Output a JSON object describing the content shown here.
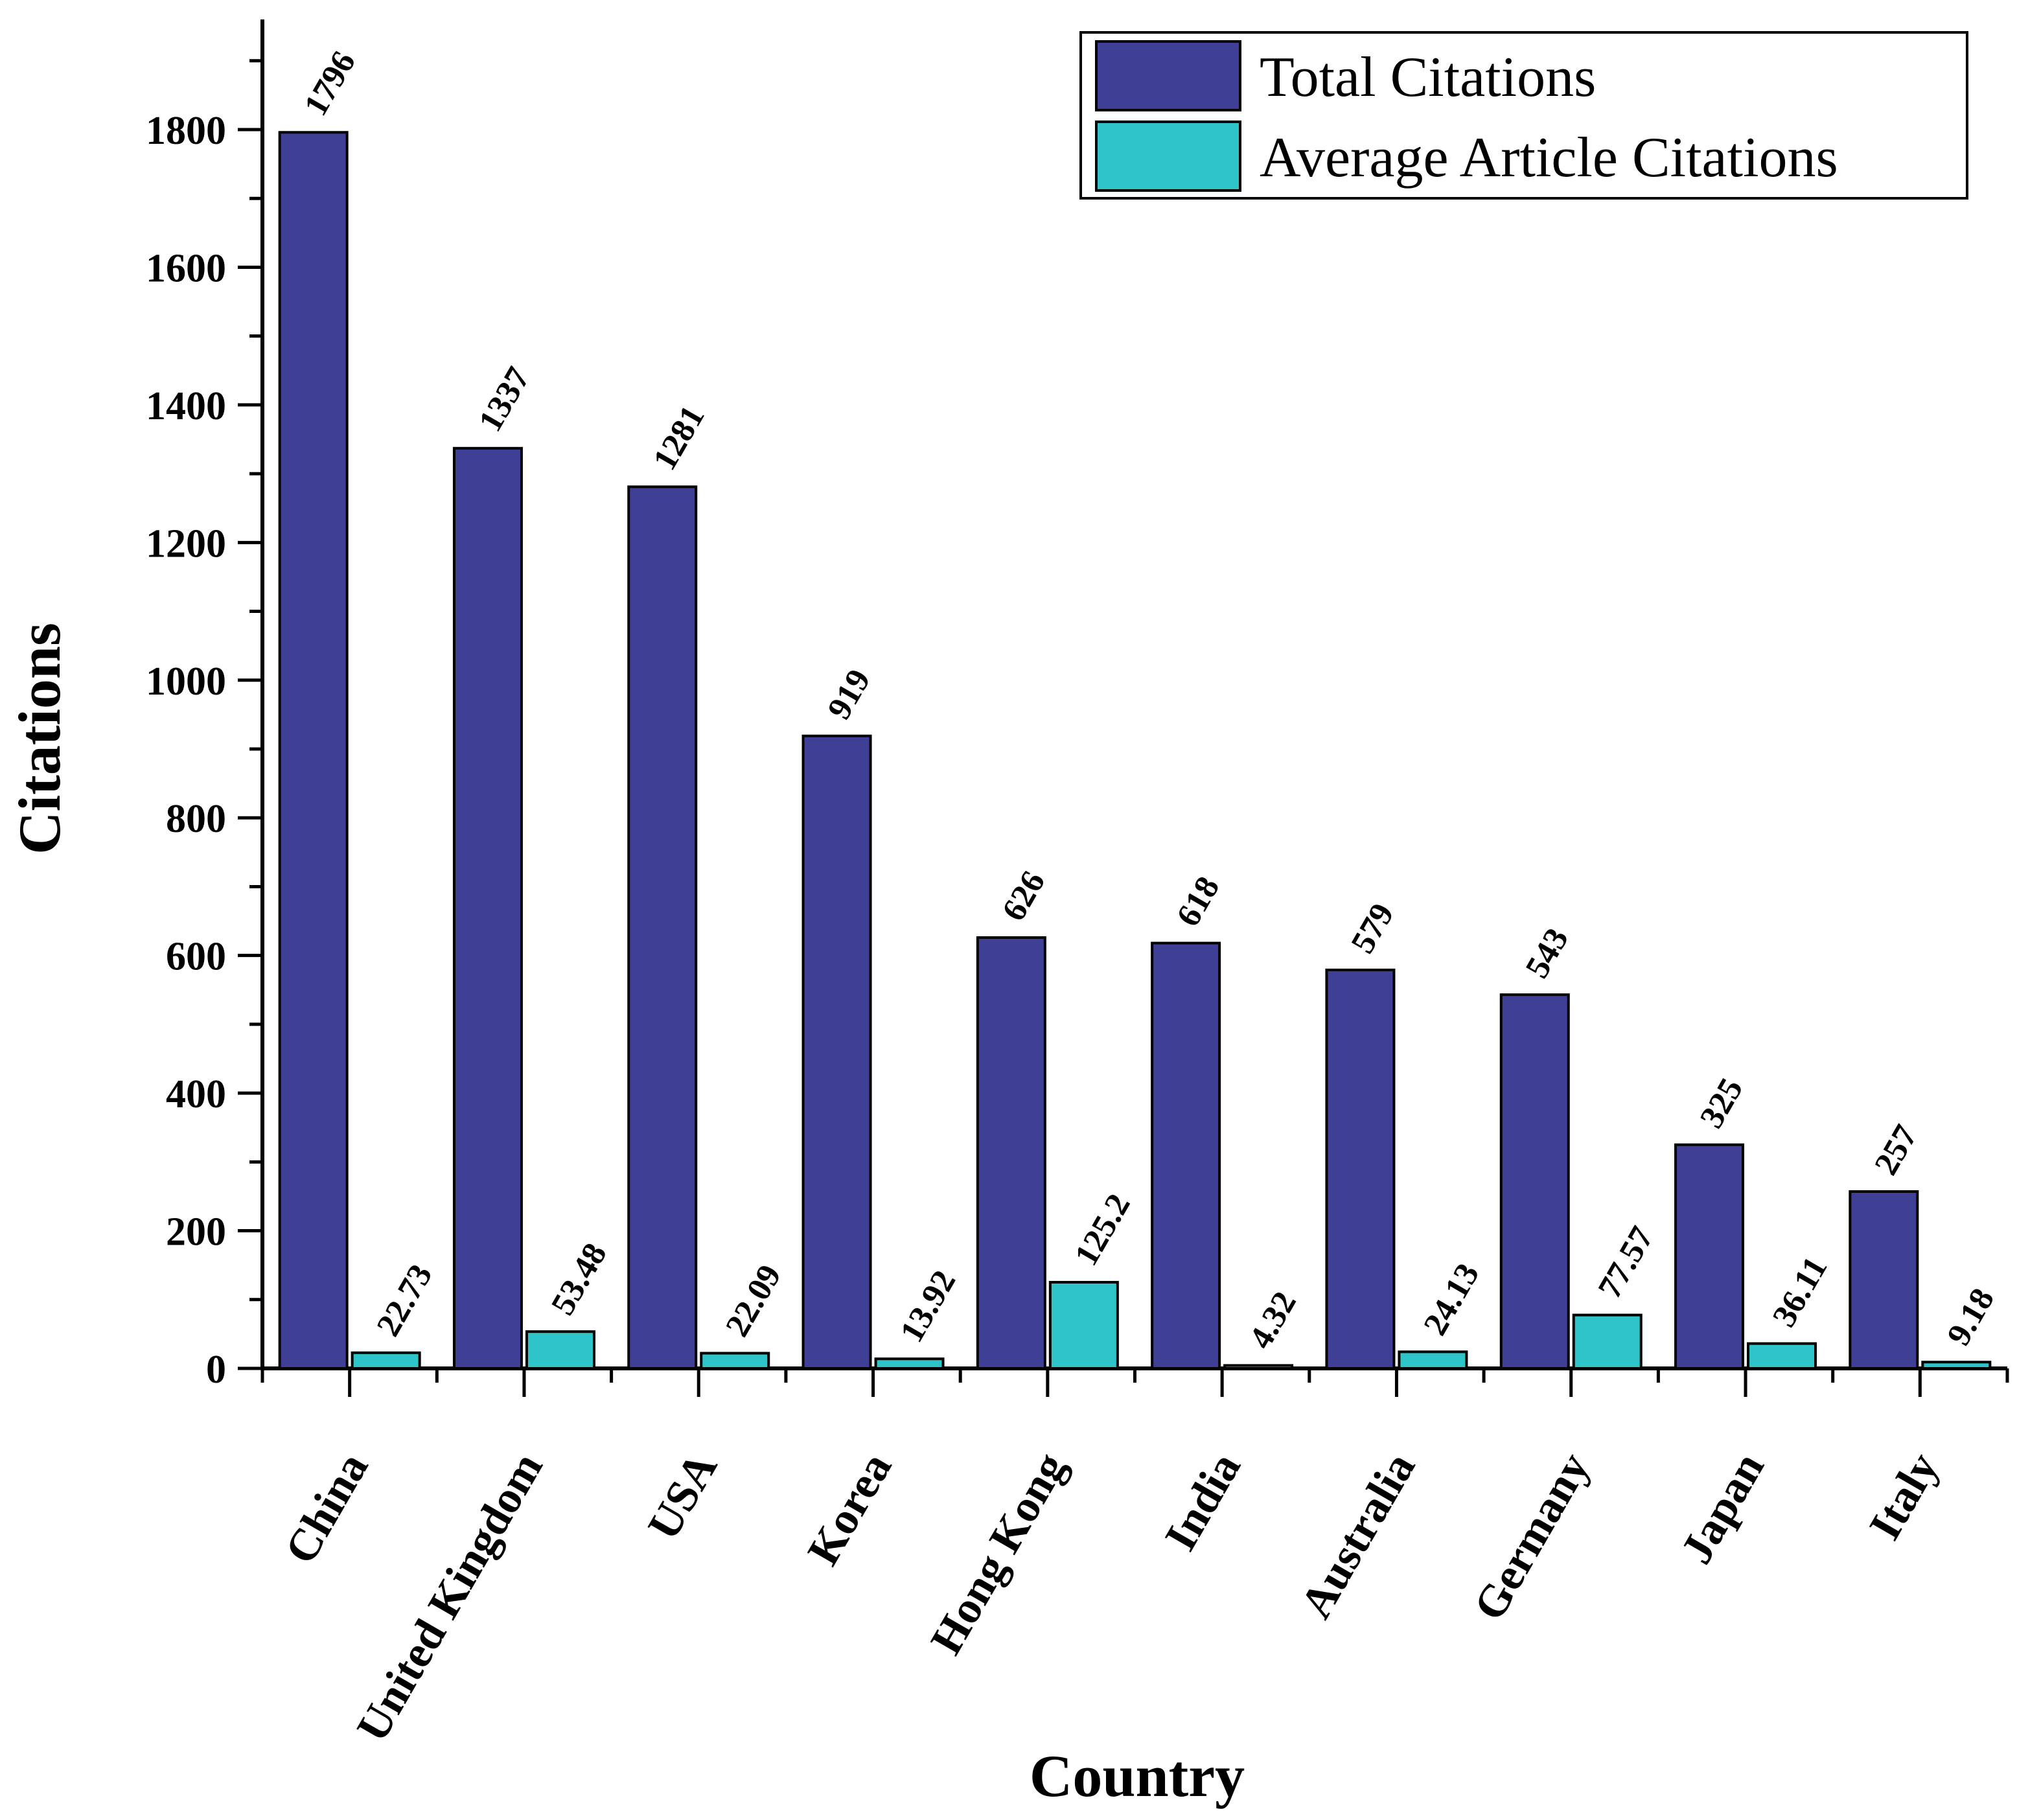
{
  "chart_data": {
    "type": "bar",
    "title": "",
    "xlabel": "Country",
    "ylabel": "Citations",
    "ylim": [
      0,
      1970
    ],
    "yticks": [
      0,
      200,
      400,
      600,
      800,
      1000,
      1200,
      1400,
      1600,
      1800
    ],
    "categories": [
      "China",
      "United Kingdom",
      "USA",
      "Korea",
      "Hong Kong",
      "India",
      "Australia",
      "Germany",
      "Japan",
      "Italy"
    ],
    "series": [
      {
        "name": "Total Citations",
        "color": "#3f3f96",
        "values": [
          1796,
          1337,
          1281,
          919,
          626,
          618,
          579,
          543,
          325,
          257
        ],
        "labels": [
          "1796",
          "1337",
          "1281",
          "919",
          "626",
          "618",
          "579",
          "543",
          "325",
          "257"
        ]
      },
      {
        "name": "Average Article Citations",
        "color": "#2ec4c8",
        "values": [
          22.73,
          53.48,
          22.09,
          13.92,
          125.2,
          4.32,
          24.13,
          77.57,
          36.11,
          9.18
        ],
        "labels": [
          "22.73",
          "53.48",
          "22.09",
          "13.92",
          "125.2",
          "4.32",
          "24.13",
          "77.57",
          "36.11",
          "9.18"
        ]
      }
    ],
    "legend": "top-right",
    "grid": false
  }
}
